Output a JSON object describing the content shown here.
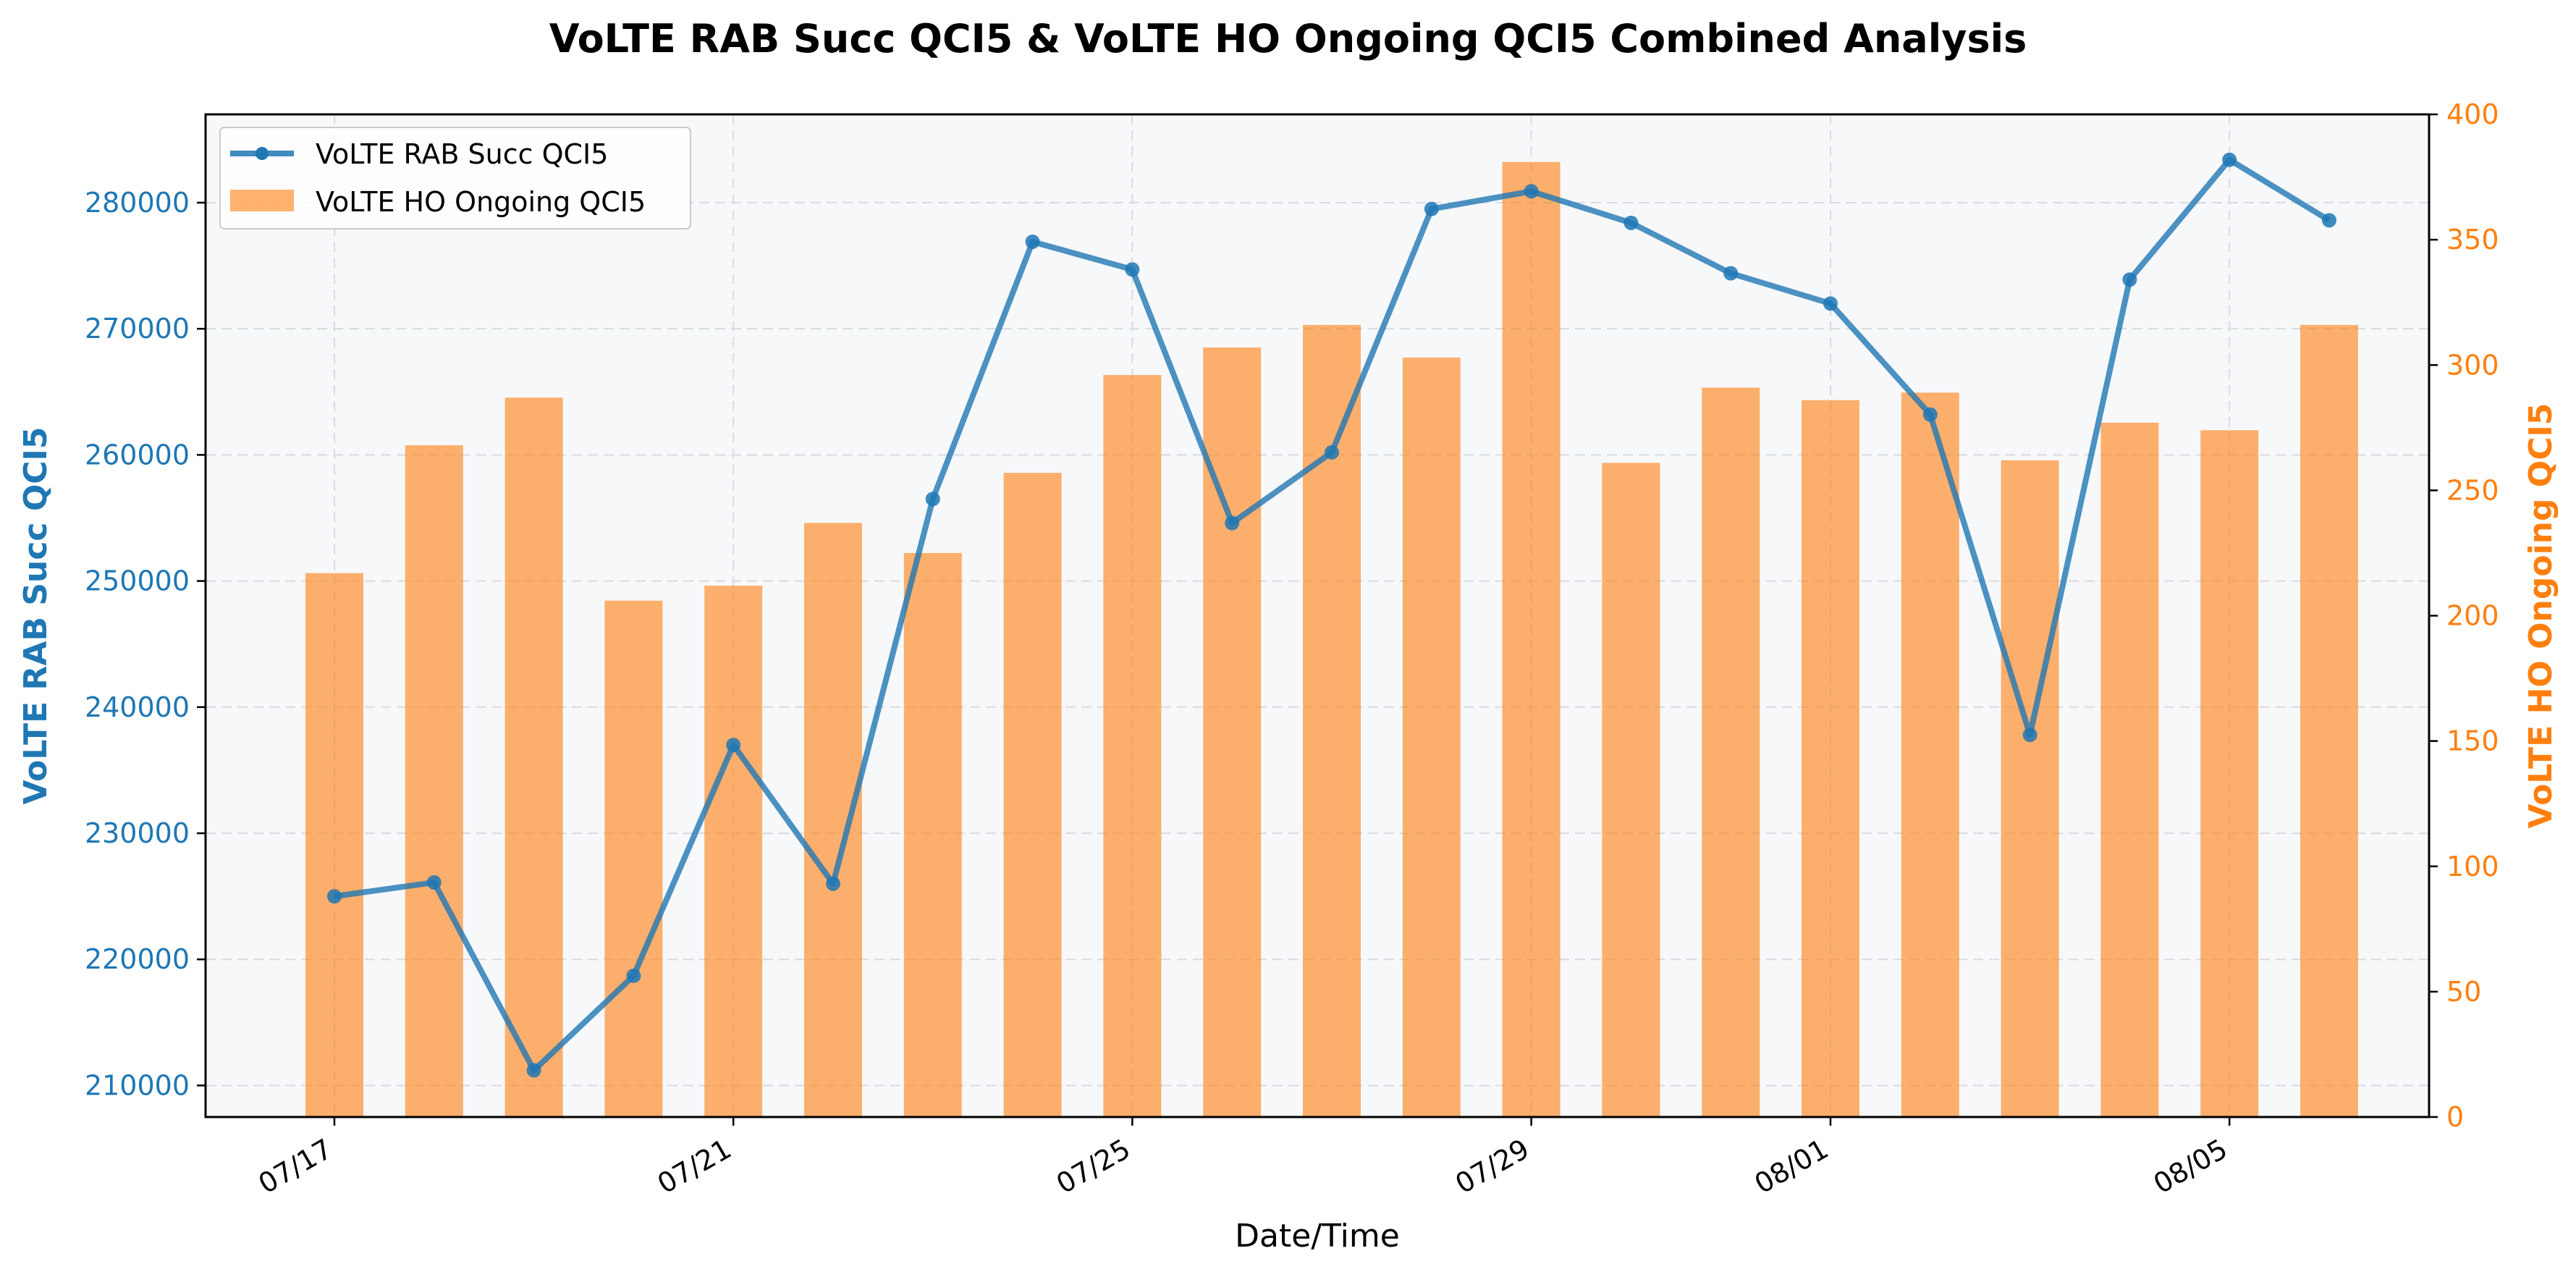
{
  "chart_data": {
    "type": "bar+line",
    "title": "VoLTE RAB Succ QCI5 & VoLTE HO Ongoing QCI5 Combined Analysis",
    "xlabel": "Date/Time",
    "ylabel_left": "VoLTE RAB Succ QCI5",
    "ylabel_right": "VoLTE HO Ongoing QCI5",
    "x_dates": [
      "07/17",
      "07/18",
      "07/19",
      "07/20",
      "07/21",
      "07/22",
      "07/23",
      "07/24",
      "07/25",
      "07/26",
      "07/27",
      "07/28",
      "07/29",
      "07/30",
      "07/31",
      "08/01",
      "08/02",
      "08/03",
      "08/04",
      "08/05",
      "08/06"
    ],
    "x_tick_labels": [
      "07/17",
      "07/21",
      "07/25",
      "07/29",
      "08/01",
      "08/05"
    ],
    "series": [
      {
        "name": "VoLTE RAB Succ QCI5",
        "type": "line",
        "axis": "left",
        "color": "#1f77b4",
        "values": [
          225000,
          226100,
          211200,
          218700,
          237000,
          226000,
          256500,
          276900,
          274700,
          254600,
          260200,
          279500,
          280900,
          278400,
          274400,
          272000,
          263200,
          237800,
          273900,
          283400,
          278600
        ]
      },
      {
        "name": "VoLTE HO Ongoing QCI5",
        "type": "bar",
        "axis": "right",
        "color": "#ff7f0e",
        "values": [
          217,
          268,
          287,
          206,
          212,
          237,
          225,
          257,
          296,
          307,
          316,
          303,
          381,
          261,
          291,
          286,
          289,
          262,
          277,
          274,
          316
        ]
      }
    ],
    "ylim_left": [
      207500,
      287000
    ],
    "ylim_right": [
      0,
      400
    ],
    "yticks_left": [
      "210000",
      "220000",
      "230000",
      "240000",
      "250000",
      "260000",
      "270000",
      "280000"
    ],
    "yticks_right": [
      "0",
      "50",
      "100",
      "150",
      "200",
      "250",
      "300",
      "350",
      "400"
    ],
    "grid": true,
    "legend_position": "top-left",
    "colors": {
      "left_axis": "#1f77b4",
      "right_axis": "#ff7f0e",
      "plot_background": "#f7f8fa",
      "grid": "#d8dce0"
    }
  }
}
